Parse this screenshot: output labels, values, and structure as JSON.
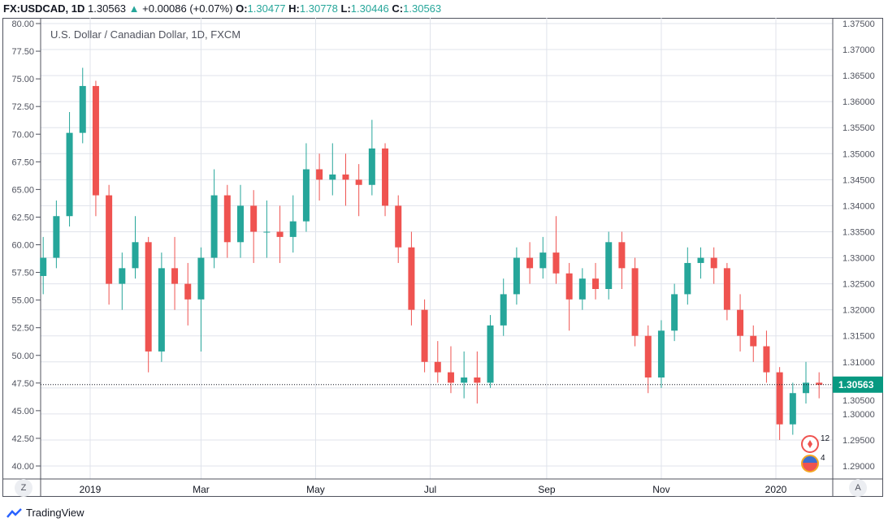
{
  "header": {
    "symbol": "FX:USDCAD, 1D",
    "last": "1.30563",
    "change": "+0.00086 (+0.07%)",
    "o_label": "O:",
    "o": "1.30477",
    "h_label": "H:",
    "h": "1.30778",
    "l_label": "L:",
    "l": "1.30446",
    "c_label": "C:",
    "c": "1.30563"
  },
  "buttons": {
    "left": "Z",
    "right": "A"
  },
  "brand": "TradingView",
  "events": {
    "canada_count": "12",
    "us_count": "4"
  },
  "colors": {
    "up": "#26a69a",
    "down": "#ef5350",
    "grid": "#e0e3eb",
    "price_label": "#089981"
  },
  "chart_data": {
    "type": "candlestick",
    "title": "U.S. Dollar / Canadian Dollar, 1D, FXCM",
    "grid": true,
    "ylim": [
      1.29,
      1.375
    ],
    "right_ticks": [
      "1.37500",
      "1.37000",
      "1.36500",
      "1.36000",
      "1.35500",
      "1.35000",
      "1.34500",
      "1.34000",
      "1.33500",
      "1.33000",
      "1.32500",
      "1.32000",
      "1.31500",
      "1.31000",
      "1.30500",
      "1.30000",
      "1.29500",
      "1.29000"
    ],
    "left_ticks": [
      "80.00",
      "77.50",
      "75.00",
      "72.50",
      "70.00",
      "67.50",
      "65.00",
      "62.50",
      "60.00",
      "57.50",
      "55.00",
      "52.50",
      "50.00",
      "47.50",
      "45.00",
      "42.50",
      "40.00"
    ],
    "x_ticks": [
      {
        "label": "2019",
        "date": "2019-01-01"
      },
      {
        "label": "Mar",
        "date": "2019-03-01"
      },
      {
        "label": "May",
        "date": "2019-05-01"
      },
      {
        "label": "Jul",
        "date": "2019-07-01"
      },
      {
        "label": "Sep",
        "date": "2019-09-01"
      },
      {
        "label": "Nov",
        "date": "2019-11-01"
      },
      {
        "label": "2020",
        "date": "2020-01-01"
      }
    ],
    "last_price": 1.30563,
    "last_price_label": "1.30563",
    "columns": [
      "date",
      "open",
      "high",
      "low",
      "close"
    ],
    "candles": [
      [
        "2018-12-07",
        1.3265,
        1.334,
        1.323,
        1.33
      ],
      [
        "2018-12-14",
        1.33,
        1.341,
        1.328,
        1.338
      ],
      [
        "2018-12-21",
        1.338,
        1.358,
        1.336,
        1.354
      ],
      [
        "2018-12-28",
        1.354,
        1.3665,
        1.352,
        1.363
      ],
      [
        "2019-01-04",
        1.363,
        1.364,
        1.338,
        1.342
      ],
      [
        "2019-01-11",
        1.342,
        1.344,
        1.321,
        1.325
      ],
      [
        "2019-01-18",
        1.325,
        1.331,
        1.32,
        1.328
      ],
      [
        "2019-01-25",
        1.328,
        1.338,
        1.326,
        1.333
      ],
      [
        "2019-02-01",
        1.333,
        1.334,
        1.308,
        1.312
      ],
      [
        "2019-02-08",
        1.312,
        1.331,
        1.31,
        1.328
      ],
      [
        "2019-02-15",
        1.328,
        1.334,
        1.32,
        1.325
      ],
      [
        "2019-02-22",
        1.325,
        1.329,
        1.317,
        1.322
      ],
      [
        "2019-03-01",
        1.322,
        1.332,
        1.312,
        1.33
      ],
      [
        "2019-03-08",
        1.33,
        1.347,
        1.328,
        1.342
      ],
      [
        "2019-03-15",
        1.342,
        1.344,
        1.33,
        1.333
      ],
      [
        "2019-03-22",
        1.333,
        1.344,
        1.33,
        1.34
      ],
      [
        "2019-03-29",
        1.34,
        1.343,
        1.329,
        1.335
      ],
      [
        "2019-04-05",
        1.335,
        1.341,
        1.33,
        1.335
      ],
      [
        "2019-04-12",
        1.335,
        1.34,
        1.329,
        1.334
      ],
      [
        "2019-04-19",
        1.334,
        1.342,
        1.331,
        1.337
      ],
      [
        "2019-04-26",
        1.337,
        1.352,
        1.335,
        1.347
      ],
      [
        "2019-05-03",
        1.347,
        1.35,
        1.341,
        1.345
      ],
      [
        "2019-05-10",
        1.345,
        1.352,
        1.342,
        1.346
      ],
      [
        "2019-05-17",
        1.346,
        1.35,
        1.34,
        1.345
      ],
      [
        "2019-05-24",
        1.345,
        1.348,
        1.338,
        1.344
      ],
      [
        "2019-05-31",
        1.344,
        1.3565,
        1.342,
        1.351
      ],
      [
        "2019-06-07",
        1.351,
        1.352,
        1.338,
        1.34
      ],
      [
        "2019-06-14",
        1.34,
        1.342,
        1.329,
        1.332
      ],
      [
        "2019-06-21",
        1.332,
        1.335,
        1.317,
        1.32
      ],
      [
        "2019-06-28",
        1.32,
        1.322,
        1.308,
        1.31
      ],
      [
        "2019-07-05",
        1.31,
        1.314,
        1.306,
        1.308
      ],
      [
        "2019-07-12",
        1.308,
        1.313,
        1.304,
        1.306
      ],
      [
        "2019-07-19",
        1.306,
        1.312,
        1.303,
        1.307
      ],
      [
        "2019-07-26",
        1.307,
        1.312,
        1.302,
        1.306
      ],
      [
        "2019-08-02",
        1.306,
        1.319,
        1.305,
        1.317
      ],
      [
        "2019-08-09",
        1.317,
        1.326,
        1.315,
        1.323
      ],
      [
        "2019-08-16",
        1.323,
        1.332,
        1.321,
        1.33
      ],
      [
        "2019-08-23",
        1.33,
        1.333,
        1.325,
        1.328
      ],
      [
        "2019-08-30",
        1.328,
        1.334,
        1.326,
        1.331
      ],
      [
        "2019-09-06",
        1.331,
        1.338,
        1.325,
        1.327
      ],
      [
        "2019-09-13",
        1.327,
        1.329,
        1.316,
        1.322
      ],
      [
        "2019-09-20",
        1.322,
        1.328,
        1.32,
        1.326
      ],
      [
        "2019-09-27",
        1.326,
        1.329,
        1.322,
        1.324
      ],
      [
        "2019-10-04",
        1.324,
        1.335,
        1.322,
        1.333
      ],
      [
        "2019-10-11",
        1.333,
        1.335,
        1.324,
        1.328
      ],
      [
        "2019-10-18",
        1.328,
        1.33,
        1.313,
        1.315
      ],
      [
        "2019-10-25",
        1.315,
        1.317,
        1.304,
        1.307
      ],
      [
        "2019-11-01",
        1.307,
        1.318,
        1.305,
        1.316
      ],
      [
        "2019-11-08",
        1.316,
        1.325,
        1.314,
        1.323
      ],
      [
        "2019-11-15",
        1.323,
        1.332,
        1.321,
        1.329
      ],
      [
        "2019-11-22",
        1.329,
        1.332,
        1.326,
        1.33
      ],
      [
        "2019-11-29",
        1.33,
        1.332,
        1.325,
        1.328
      ],
      [
        "2019-12-06",
        1.328,
        1.329,
        1.318,
        1.32
      ],
      [
        "2019-12-13",
        1.32,
        1.323,
        1.312,
        1.315
      ],
      [
        "2019-12-20",
        1.315,
        1.317,
        1.31,
        1.313
      ],
      [
        "2019-12-27",
        1.313,
        1.316,
        1.306,
        1.308
      ],
      [
        "2020-01-03",
        1.308,
        1.309,
        1.295,
        1.298
      ],
      [
        "2020-01-10",
        1.298,
        1.306,
        1.296,
        1.304
      ],
      [
        "2020-01-17",
        1.304,
        1.31,
        1.302,
        1.306
      ],
      [
        "2020-01-24",
        1.306,
        1.308,
        1.303,
        1.3056
      ]
    ]
  }
}
